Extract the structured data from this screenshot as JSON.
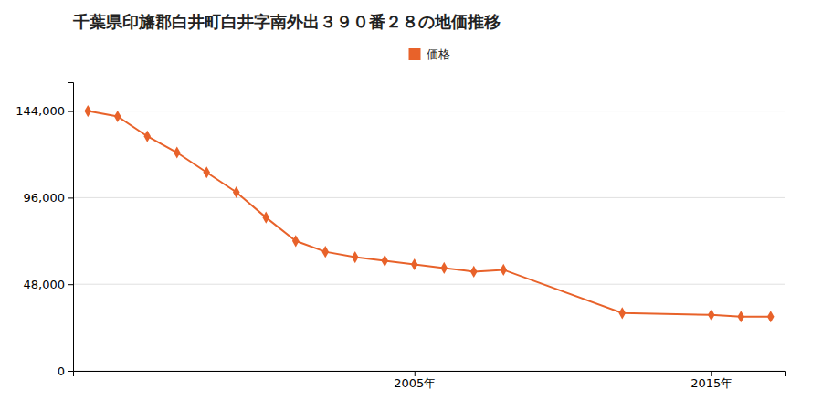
{
  "chart_data": {
    "type": "line",
    "title": "千葉県印旛郡白井町白井字南外出３９０番２８の地価推移",
    "x": [
      1994,
      1995,
      1996,
      1997,
      1998,
      1999,
      2000,
      2001,
      2002,
      2003,
      2004,
      2005,
      2006,
      2007,
      2008,
      2012,
      2015,
      2016,
      2017
    ],
    "series": [
      {
        "name": "価格",
        "color": "#e8622a",
        "marker": "diamond",
        "line_style": "solid",
        "values": [
          144000,
          141000,
          130000,
          121000,
          110000,
          99000,
          85000,
          72000,
          66000,
          63000,
          61000,
          59000,
          57000,
          55000,
          56000,
          32000,
          31000,
          30000,
          30000
        ]
      }
    ],
    "xlim": [
      1993.5,
      2017.5
    ],
    "xticks": [
      {
        "value": 2005,
        "label": "2005年"
      },
      {
        "value": 2015,
        "label": "2015年"
      }
    ],
    "ylim": [
      0,
      160000
    ],
    "yticks": [
      0,
      {
        "value": 48000,
        "label": "48,000"
      },
      {
        "value": 96000,
        "label": "96,000"
      },
      {
        "value": 144000,
        "label": "144,000"
      }
    ],
    "grid": true,
    "legend": "top"
  }
}
